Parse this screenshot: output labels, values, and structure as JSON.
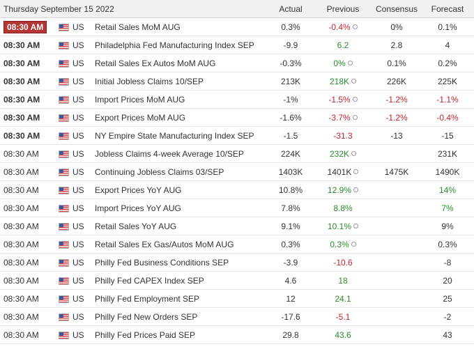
{
  "header": {
    "date": "Thursday September 15 2022",
    "actual": "Actual",
    "previous": "Previous",
    "consensus": "Consensus",
    "forecast": "Forecast"
  },
  "colors": {
    "up": "#2e8b2e",
    "down": "#c0262d",
    "badge": "#b53434",
    "header_bg": "#f1f1f1"
  },
  "icons": {
    "flag": "us-flag-icon",
    "revision": "revision-circle-icon"
  },
  "rows": [
    {
      "time": "08:30 AM",
      "time_style": "badge",
      "country": "US",
      "event": "Retail Sales MoM AUG",
      "actual": "0.3%",
      "previous": "-0.4%",
      "previous_color": "down",
      "revised": true,
      "consensus": "0%",
      "consensus_color": "neutral",
      "forecast": "0.1%",
      "forecast_color": "neutral"
    },
    {
      "time": "08:30 AM",
      "time_style": "bold",
      "country": "US",
      "event": "Philadelphia Fed Manufacturing Index SEP",
      "actual": "-9.9",
      "previous": "6.2",
      "previous_color": "up",
      "revised": false,
      "consensus": "2.8",
      "consensus_color": "neutral",
      "forecast": "4",
      "forecast_color": "neutral"
    },
    {
      "time": "08:30 AM",
      "time_style": "bold",
      "country": "US",
      "event": "Retail Sales Ex Autos MoM AUG",
      "actual": "-0.3%",
      "previous": "0%",
      "previous_color": "up",
      "revised": true,
      "consensus": "0.1%",
      "consensus_color": "neutral",
      "forecast": "0.2%",
      "forecast_color": "neutral"
    },
    {
      "time": "08:30 AM",
      "time_style": "bold",
      "country": "US",
      "event": "Initial Jobless Claims 10/SEP",
      "actual": "213K",
      "previous": "218K",
      "previous_color": "up",
      "revised": true,
      "consensus": "226K",
      "consensus_color": "neutral",
      "forecast": "225K",
      "forecast_color": "neutral"
    },
    {
      "time": "08:30 AM",
      "time_style": "bold",
      "country": "US",
      "event": "Import Prices MoM AUG",
      "actual": "-1%",
      "previous": "-1.5%",
      "previous_color": "down",
      "revised": true,
      "consensus": "-1.2%",
      "consensus_color": "down",
      "forecast": "-1.1%",
      "forecast_color": "down"
    },
    {
      "time": "08:30 AM",
      "time_style": "bold",
      "country": "US",
      "event": "Export Prices MoM AUG",
      "actual": "-1.6%",
      "previous": "-3.7%",
      "previous_color": "down",
      "revised": true,
      "consensus": "-1.2%",
      "consensus_color": "down",
      "forecast": "-0.4%",
      "forecast_color": "down"
    },
    {
      "time": "08:30 AM",
      "time_style": "bold",
      "country": "US",
      "event": "NY Empire State Manufacturing Index SEP",
      "actual": "-1.5",
      "previous": "-31.3",
      "previous_color": "down",
      "revised": false,
      "consensus": "-13",
      "consensus_color": "neutral",
      "forecast": "-15",
      "forecast_color": "neutral"
    },
    {
      "time": "08:30 AM",
      "time_style": "plain",
      "country": "US",
      "event": "Jobless Claims 4-week Average 10/SEP",
      "actual": "224K",
      "previous": "232K",
      "previous_color": "up",
      "revised": true,
      "consensus": "",
      "consensus_color": "neutral",
      "forecast": "231K",
      "forecast_color": "neutral"
    },
    {
      "time": "08:30 AM",
      "time_style": "plain",
      "country": "US",
      "event": "Continuing Jobless Claims 03/SEP",
      "actual": "1403K",
      "previous": "1401K",
      "previous_color": "neutral",
      "revised": true,
      "consensus": "1475K",
      "consensus_color": "neutral",
      "forecast": "1490K",
      "forecast_color": "neutral"
    },
    {
      "time": "08:30 AM",
      "time_style": "plain",
      "country": "US",
      "event": "Export Prices YoY AUG",
      "actual": "10.8%",
      "previous": "12.9%",
      "previous_color": "up",
      "revised": true,
      "consensus": "",
      "consensus_color": "neutral",
      "forecast": "14%",
      "forecast_color": "up"
    },
    {
      "time": "08:30 AM",
      "time_style": "plain",
      "country": "US",
      "event": "Import Prices YoY AUG",
      "actual": "7.8%",
      "previous": "8.8%",
      "previous_color": "up",
      "revised": false,
      "consensus": "",
      "consensus_color": "neutral",
      "forecast": "7%",
      "forecast_color": "up"
    },
    {
      "time": "08:30 AM",
      "time_style": "plain",
      "country": "US",
      "event": "Retail Sales YoY AUG",
      "actual": "9.1%",
      "previous": "10.1%",
      "previous_color": "up",
      "revised": true,
      "consensus": "",
      "consensus_color": "neutral",
      "forecast": "9%",
      "forecast_color": "neutral"
    },
    {
      "time": "08:30 AM",
      "time_style": "plain",
      "country": "US",
      "event": "Retail Sales Ex Gas/Autos MoM AUG",
      "actual": "0.3%",
      "previous": "0.3%",
      "previous_color": "up",
      "revised": true,
      "consensus": "",
      "consensus_color": "neutral",
      "forecast": "0.3%",
      "forecast_color": "neutral"
    },
    {
      "time": "08:30 AM",
      "time_style": "plain",
      "country": "US",
      "event": "Philly Fed Business Conditions SEP",
      "actual": "-3.9",
      "previous": "-10.6",
      "previous_color": "down",
      "revised": false,
      "consensus": "",
      "consensus_color": "neutral",
      "forecast": "-8",
      "forecast_color": "neutral"
    },
    {
      "time": "08:30 AM",
      "time_style": "plain",
      "country": "US",
      "event": "Philly Fed CAPEX Index SEP",
      "actual": "4.6",
      "previous": "18",
      "previous_color": "up",
      "revised": false,
      "consensus": "",
      "consensus_color": "neutral",
      "forecast": "20",
      "forecast_color": "neutral"
    },
    {
      "time": "08:30 AM",
      "time_style": "plain",
      "country": "US",
      "event": "Philly Fed Employment SEP",
      "actual": "12",
      "previous": "24.1",
      "previous_color": "up",
      "revised": false,
      "consensus": "",
      "consensus_color": "neutral",
      "forecast": "25",
      "forecast_color": "neutral"
    },
    {
      "time": "08:30 AM",
      "time_style": "plain",
      "country": "US",
      "event": "Philly Fed New Orders SEP",
      "actual": "-17.6",
      "previous": "-5.1",
      "previous_color": "down",
      "revised": false,
      "consensus": "",
      "consensus_color": "neutral",
      "forecast": "-2",
      "forecast_color": "neutral"
    },
    {
      "time": "08:30 AM",
      "time_style": "plain",
      "country": "US",
      "event": "Philly Fed Prices Paid SEP",
      "actual": "29.8",
      "previous": "43.6",
      "previous_color": "up",
      "revised": false,
      "consensus": "",
      "consensus_color": "neutral",
      "forecast": "43",
      "forecast_color": "neutral"
    }
  ]
}
